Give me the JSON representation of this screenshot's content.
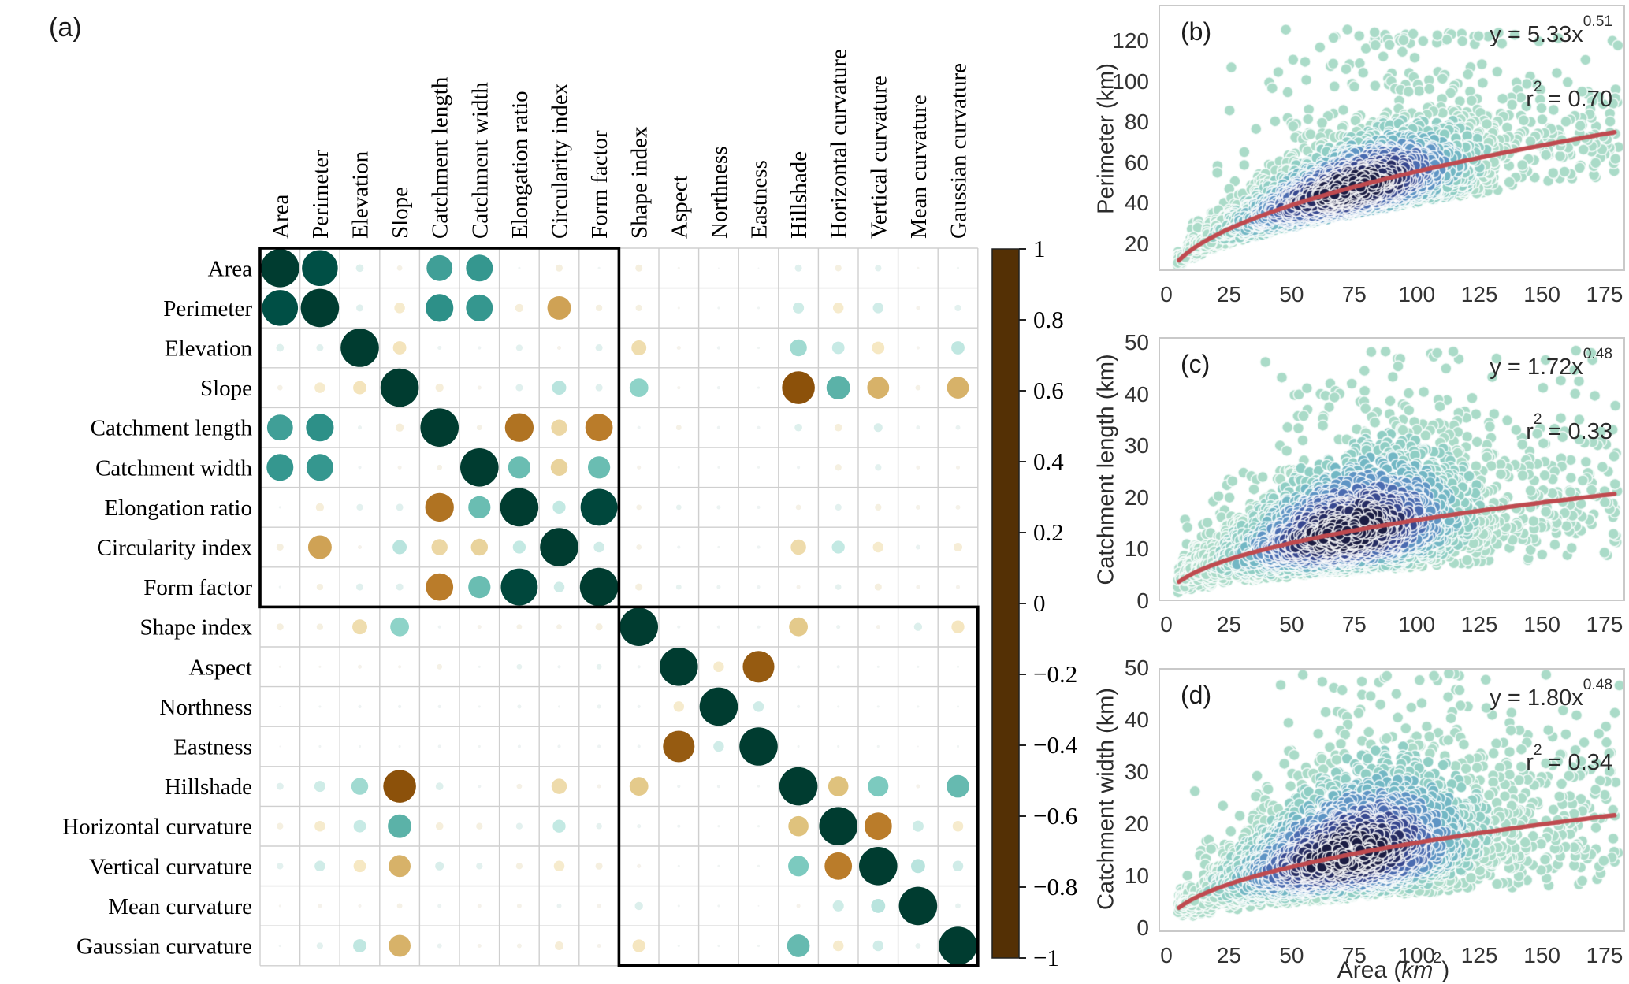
{
  "chart_data": [
    {
      "type": "heatmap",
      "subtype": "bubble-correlation-matrix",
      "letter": "(a)",
      "variables": [
        "Area",
        "Perimeter",
        "Elevation",
        "Slope",
        "Catchment length",
        "Catchment width",
        "Elongation ratio",
        "Circularity index",
        "Form factor",
        "Shape index",
        "Aspect",
        "Northness",
        "Eastness",
        "Hillshade",
        "Horizontal curvature",
        "Vertical curvature",
        "Mean curvature",
        "Gaussian curvature"
      ],
      "matrix": [
        [
          1.0,
          0.91,
          0.1,
          -0.06,
          0.57,
          0.6,
          0.02,
          -0.09,
          0.02,
          -0.09,
          -0.02,
          0.01,
          0.01,
          0.09,
          -0.08,
          0.08,
          -0.02,
          0.02
        ],
        [
          0.91,
          1.0,
          0.09,
          -0.16,
          0.63,
          0.6,
          -0.11,
          -0.5,
          -0.08,
          -0.08,
          -0.02,
          0.02,
          0.02,
          0.17,
          -0.16,
          0.16,
          -0.04,
          0.08
        ],
        [
          0.1,
          0.09,
          1.0,
          -0.22,
          0.04,
          0.03,
          0.08,
          -0.04,
          0.09,
          -0.26,
          -0.04,
          0.03,
          0.02,
          0.31,
          0.2,
          -0.2,
          -0.03,
          0.22
        ],
        [
          -0.06,
          -0.16,
          -0.22,
          1.0,
          -0.11,
          -0.04,
          0.09,
          0.24,
          0.09,
          0.36,
          -0.03,
          0.03,
          0.02,
          -0.8,
          0.5,
          -0.45,
          -0.06,
          -0.45
        ],
        [
          0.57,
          0.63,
          0.04,
          -0.11,
          1.0,
          -0.06,
          -0.66,
          -0.29,
          -0.62,
          0.03,
          -0.06,
          0.03,
          0.03,
          0.1,
          -0.1,
          0.12,
          0.04,
          0.05
        ],
        [
          0.6,
          0.6,
          0.03,
          -0.04,
          -0.06,
          1.0,
          0.46,
          -0.31,
          0.46,
          -0.04,
          0.02,
          0.02,
          0.02,
          0.03,
          -0.08,
          0.08,
          -0.04,
          -0.04
        ],
        [
          0.02,
          -0.11,
          0.08,
          0.09,
          -0.66,
          0.46,
          1.0,
          0.21,
          0.95,
          -0.06,
          0.06,
          0.04,
          0.03,
          -0.06,
          0.08,
          -0.08,
          -0.05,
          -0.05
        ],
        [
          -0.09,
          -0.5,
          -0.04,
          0.24,
          -0.29,
          -0.31,
          0.21,
          1.0,
          0.16,
          -0.06,
          0.03,
          0.02,
          0.03,
          -0.27,
          0.21,
          -0.16,
          0.05,
          -0.12
        ],
        [
          0.02,
          -0.08,
          0.09,
          0.09,
          -0.62,
          0.46,
          0.95,
          0.16,
          1.0,
          -0.09,
          0.06,
          0.04,
          0.03,
          -0.04,
          0.07,
          -0.09,
          -0.04,
          -0.04
        ],
        [
          -0.09,
          -0.08,
          -0.26,
          0.36,
          0.03,
          -0.04,
          -0.06,
          -0.06,
          -0.09,
          1.0,
          0.03,
          0.03,
          0.03,
          -0.36,
          0.04,
          -0.04,
          0.11,
          -0.21
        ],
        [
          -0.02,
          -0.02,
          -0.04,
          -0.03,
          -0.06,
          0.02,
          0.06,
          0.03,
          0.06,
          0.03,
          1.0,
          -0.16,
          -0.76,
          0.03,
          0.03,
          0.02,
          0.02,
          0.02
        ],
        [
          0.01,
          0.02,
          0.03,
          0.03,
          0.03,
          0.02,
          0.04,
          0.02,
          0.04,
          0.03,
          -0.16,
          1.0,
          0.16,
          0.03,
          0.02,
          0.02,
          0.02,
          0.02
        ],
        [
          0.01,
          0.02,
          0.02,
          0.02,
          0.03,
          0.02,
          0.03,
          0.03,
          0.03,
          0.03,
          -0.76,
          0.16,
          1.0,
          0.02,
          0.02,
          0.02,
          0.01,
          0.02
        ],
        [
          0.09,
          0.17,
          0.31,
          -0.8,
          0.1,
          0.03,
          -0.06,
          -0.27,
          -0.04,
          -0.36,
          0.03,
          0.03,
          0.02,
          1.0,
          -0.4,
          0.41,
          -0.04,
          0.47
        ],
        [
          -0.08,
          -0.16,
          0.2,
          0.5,
          -0.1,
          -0.08,
          0.08,
          0.21,
          0.07,
          0.04,
          0.03,
          0.02,
          0.02,
          -0.4,
          1.0,
          -0.62,
          0.17,
          -0.16
        ],
        [
          0.08,
          0.16,
          -0.2,
          -0.45,
          0.12,
          0.08,
          -0.08,
          -0.16,
          -0.09,
          -0.04,
          0.02,
          0.02,
          0.02,
          0.41,
          -0.62,
          1.0,
          0.24,
          0.16
        ],
        [
          -0.02,
          -0.04,
          -0.03,
          -0.06,
          0.04,
          -0.04,
          -0.05,
          0.05,
          -0.04,
          0.11,
          0.02,
          0.02,
          0.01,
          -0.04,
          0.17,
          0.24,
          1.0,
          0.06
        ],
        [
          0.02,
          0.08,
          0.22,
          -0.45,
          0.05,
          -0.04,
          -0.05,
          -0.12,
          -0.04,
          -0.21,
          0.02,
          0.02,
          0.02,
          0.47,
          -0.16,
          0.16,
          0.06,
          1.0
        ]
      ],
      "highlight_boxes": [
        [
          0,
          8
        ],
        [
          9,
          17
        ]
      ],
      "colorbar": {
        "tick_labels": [
          "1",
          "0.8",
          "0.6",
          "0.4",
          "0.2",
          "0",
          "−0.2",
          "−0.4",
          "−0.6",
          "−0.8",
          "−1"
        ],
        "tick_values": [
          1,
          0.8,
          0.6,
          0.4,
          0.2,
          0,
          -0.2,
          -0.4,
          -0.6,
          -0.8,
          -1
        ],
        "range": [
          -1,
          1
        ],
        "cmap_name": "BrBG",
        "cmap_stops": [
          "#543005",
          "#8c510a",
          "#bf812d",
          "#dfc27d",
          "#f6e8c3",
          "#f5f5f5",
          "#c7eae5",
          "#80cdc1",
          "#35978f",
          "#01665e",
          "#003c30"
        ]
      },
      "grid": true
    },
    {
      "type": "scatter",
      "letter": "(b)",
      "y_label": "Perimeter (km)",
      "y_ticks": [
        20,
        40,
        60,
        80,
        100,
        120
      ],
      "x_ticks": [
        0,
        25,
        50,
        75,
        100,
        125,
        150,
        175
      ],
      "xlim": [
        0,
        182
      ],
      "ylim": [
        0,
        137
      ],
      "fit": {
        "coef": 5.33,
        "exp": 0.51,
        "text_base": "y = 5.33x",
        "text_exp": "0.51"
      },
      "r2": {
        "base": "r",
        "sup": "2",
        "rest": " = 0.70",
        "value": 0.7
      },
      "trend_color": "#bf4a4f",
      "cloud": {
        "n": 2800,
        "x_center": 73,
        "x_spread": 27,
        "x_range": [
          4.5,
          181
        ],
        "noise_sigma": 0.21,
        "outlier_prob": 0.05,
        "lower_clamp": 0.72,
        "y_max": 126
      }
    },
    {
      "type": "scatter",
      "letter": "(c)",
      "y_label": "Catchment length (km)",
      "y_ticks": [
        0,
        10,
        20,
        30,
        40,
        50
      ],
      "x_ticks": [
        0,
        25,
        50,
        75,
        100,
        125,
        150,
        175
      ],
      "xlim": [
        0,
        182
      ],
      "ylim": [
        0,
        51
      ],
      "fit": {
        "coef": 1.72,
        "exp": 0.48,
        "text_base": "y = 1.72x",
        "text_exp": "0.48"
      },
      "r2": {
        "base": "r",
        "sup": "2",
        "rest": " = 0.33",
        "value": 0.33
      },
      "trend_color": "#bf4a4f",
      "cloud": {
        "n": 3100,
        "x_center": 72,
        "x_spread": 26,
        "x_range": [
          4.5,
          181
        ],
        "noise_sigma": 0.4,
        "outlier_prob": 0.05,
        "lower_clamp": 0.42,
        "y_max": 48.5
      }
    },
    {
      "type": "scatter",
      "letter": "(d)",
      "y_label": "Catchment width (km)",
      "y_ticks": [
        0,
        10,
        20,
        30,
        40,
        50
      ],
      "x_ticks": [
        0,
        25,
        50,
        75,
        100,
        125,
        150,
        175
      ],
      "xlim": [
        0,
        182
      ],
      "ylim": [
        0,
        51
      ],
      "x_axis_label": {
        "pre": "Area (",
        "unit": "km",
        "sup": "2",
        "post": ")"
      },
      "fit": {
        "coef": 1.8,
        "exp": 0.48,
        "text_base": "y = 1.80x",
        "text_exp": "0.48"
      },
      "r2": {
        "base": "r",
        "sup": "2",
        "rest": " = 0.34",
        "value": 0.34
      },
      "trend_color": "#bf4a4f",
      "cloud": {
        "n": 3300,
        "x_center": 73,
        "x_spread": 27,
        "x_range": [
          4.5,
          181
        ],
        "noise_sigma": 0.4,
        "outlier_prob": 0.04,
        "lower_clamp": 0.4,
        "y_max": 49
      }
    }
  ],
  "style": {
    "density_colors": [
      "#aadbc8",
      "#8fcec4",
      "#72b7c4",
      "#5e94c4",
      "#4a6bb0",
      "#37478f",
      "#262c62",
      "#1a1c42"
    ],
    "point_outline": "rgba(255,255,255,0.85)",
    "grid_line_color": "#cfcfcf",
    "box_color": "#000000",
    "panel_border": "#c9c9c9"
  }
}
